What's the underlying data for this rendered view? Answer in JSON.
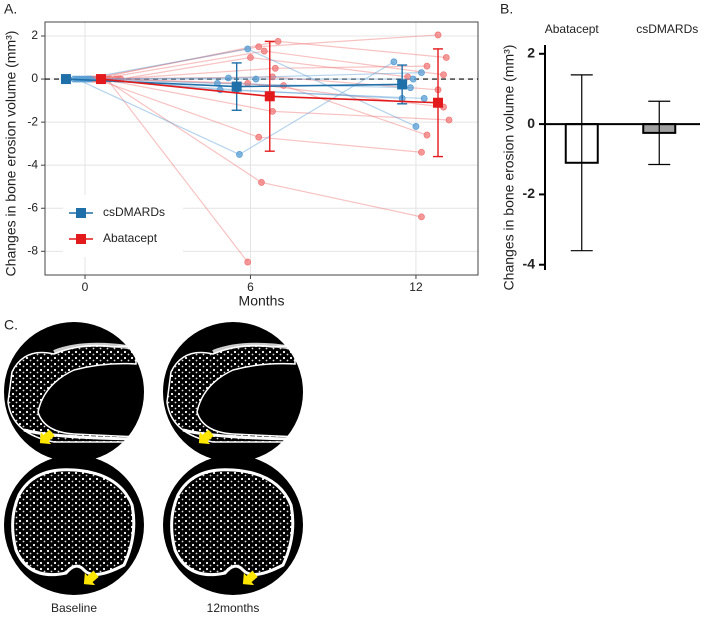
{
  "figure": {
    "panel_labels": [
      "A.",
      "B.",
      "C."
    ],
    "image_captions": [
      "Baseline",
      "12months"
    ]
  },
  "chart_data": [
    {
      "type": "line",
      "xlabel": "Months",
      "ylabel": "Changes in bone erosion volume (mm³)",
      "xlim": [
        -1.45,
        14.25
      ],
      "ylim": [
        -9.1,
        2.65
      ],
      "xticks": [
        0,
        6,
        12
      ],
      "yticks": [
        -8,
        -6,
        -4,
        -2,
        0,
        2
      ],
      "grid": true,
      "reference_line": 0,
      "legend": "lower left",
      "series": [
        {
          "color": "#f07878",
          "x": [
            0.1,
            6.3,
            12.8
          ],
          "values": [
            0,
            1.5,
            2.05
          ]
        },
        {
          "color": "#f07878",
          "x": [
            0.3,
            7.0,
            13.1
          ],
          "values": [
            0,
            1.75,
            1.0
          ]
        },
        {
          "color": "#f07878",
          "x": [
            0.5,
            6.5,
            13.0
          ],
          "values": [
            0,
            1.3,
            0.2
          ]
        },
        {
          "color": "#f07878",
          "x": [
            0.2,
            6.8,
            12.8
          ],
          "values": [
            0,
            0.1,
            -0.5
          ]
        },
        {
          "color": "#f07878",
          "x": [
            0.6,
            6.8,
            13.2
          ],
          "values": [
            0,
            -1.5,
            -1.9
          ]
        },
        {
          "color": "#f07878",
          "x": [
            0.4,
            6.3,
            12.2
          ],
          "values": [
            0,
            -2.7,
            -3.4
          ]
        },
        {
          "color": "#f07878",
          "x": [
            0.7,
            6.4,
            12.2
          ],
          "values": [
            0,
            -4.8,
            -6.4
          ]
        },
        {
          "color": "#f07878",
          "x": [
            0.8,
            5.9
          ],
          "values": [
            0,
            -8.5
          ]
        },
        {
          "color": "#f07878",
          "x": [
            0.9,
            7.2,
            12.4
          ],
          "values": [
            0,
            -0.3,
            -2.6
          ]
        },
        {
          "color": "#f07878",
          "x": [
            1.1,
            6.9,
            12.4
          ],
          "values": [
            0,
            0.5,
            0.6
          ]
        },
        {
          "color": "#f07878",
          "x": [
            1.2,
            5.9,
            13.0
          ],
          "values": [
            0,
            -0.2,
            -1.3
          ]
        },
        {
          "color": "#f07878",
          "x": [
            1.3,
            6.0,
            11.7
          ],
          "values": [
            0,
            1.0,
            0.1
          ]
        },
        {
          "color": "#5a9fd4",
          "x": [
            -0.3,
            5.6,
            11.2
          ],
          "values": [
            0,
            -3.5,
            0.8
          ]
        },
        {
          "color": "#5a9fd4",
          "x": [
            -0.1,
            5.9,
            12.0
          ],
          "values": [
            0,
            1.4,
            -2.2
          ]
        },
        {
          "color": "#5a9fd4",
          "x": [
            0.0,
            5.5,
            11.5
          ],
          "values": [
            0,
            -0.5,
            -0.9
          ]
        },
        {
          "color": "#5a9fd4",
          "x": [
            -0.2,
            6.2,
            11.9
          ],
          "values": [
            0,
            0,
            0
          ]
        },
        {
          "color": "#5a9fd4",
          "x": [
            0.1,
            4.8,
            11.8
          ],
          "values": [
            0,
            -0.2,
            -0.4
          ]
        },
        {
          "color": "#5a9fd4",
          "x": [
            -0.4,
            5.2,
            12.2
          ],
          "values": [
            0,
            0.05,
            0.3
          ]
        },
        {
          "color": "#5a9fd4",
          "x": [
            0.2,
            4.9,
            12.3
          ],
          "values": [
            0,
            -0.5,
            -0.9
          ]
        },
        {
          "name": "csDMARDs",
          "color": "#1f6fa8",
          "x": [
            -0.69,
            5.5,
            11.5
          ],
          "values": [
            0,
            -0.35,
            -0.25
          ],
          "errors": [
            0,
            1.1,
            0.9
          ]
        },
        {
          "name": "Abatacept",
          "color": "#e31a1c",
          "x": [
            0.58,
            6.7,
            12.8
          ],
          "values": [
            0,
            -0.8,
            -1.1
          ],
          "errors": [
            0,
            2.55,
            2.5
          ]
        }
      ]
    },
    {
      "type": "bar",
      "ylabel": "Changes in bone erosion volume (mm³)",
      "categories": [
        "Abatacept",
        "csDMARDs"
      ],
      "values": [
        -1.1,
        -0.25
      ],
      "errors": [
        2.5,
        0.9
      ],
      "colors": [
        "#ffffff",
        "#a0a0a0"
      ],
      "ylim": [
        -4.15,
        2.25
      ],
      "yticks": [
        -4,
        -2,
        0,
        2
      ]
    }
  ]
}
